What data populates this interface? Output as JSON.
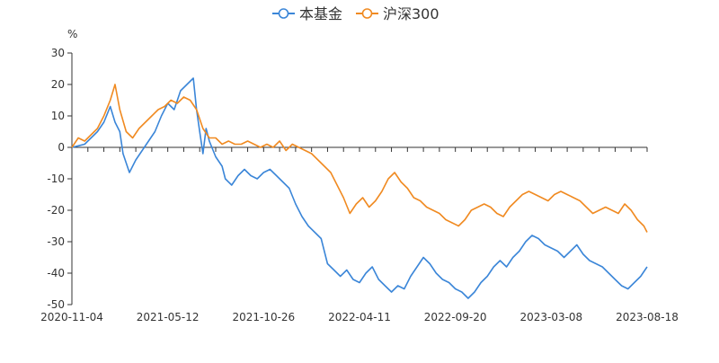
{
  "chart_data": {
    "type": "line",
    "title": "",
    "xlabel": "",
    "ylabel": "%",
    "ylim": [
      -50,
      30
    ],
    "yticks": [
      30,
      20,
      10,
      0,
      -10,
      -20,
      -30,
      -40,
      -50
    ],
    "xlim": [
      0,
      18
    ],
    "xticks": [
      {
        "label": "2020-11-04",
        "x": 0
      },
      {
        "label": "2021-05-12",
        "x": 3
      },
      {
        "label": "2021-10-26",
        "x": 6
      },
      {
        "label": "2022-04-11",
        "x": 9
      },
      {
        "label": "2022-09-20",
        "x": 12
      },
      {
        "label": "2023-03-08",
        "x": 15
      },
      {
        "label": "2023-08-18",
        "x": 18
      }
    ],
    "legend": {
      "position": "top-center"
    },
    "series": [
      {
        "name": "本基金",
        "color": "#3b86d8",
        "points": [
          [
            0,
            0
          ],
          [
            0.2,
            0.5
          ],
          [
            0.4,
            1
          ],
          [
            0.6,
            3
          ],
          [
            0.8,
            5
          ],
          [
            1.0,
            8
          ],
          [
            1.2,
            13
          ],
          [
            1.35,
            8
          ],
          [
            1.5,
            5
          ],
          [
            1.6,
            -2
          ],
          [
            1.8,
            -8
          ],
          [
            2.0,
            -4
          ],
          [
            2.2,
            -1
          ],
          [
            2.4,
            2
          ],
          [
            2.6,
            5
          ],
          [
            2.8,
            10
          ],
          [
            3.0,
            14
          ],
          [
            3.2,
            12
          ],
          [
            3.4,
            18
          ],
          [
            3.6,
            20
          ],
          [
            3.8,
            22
          ],
          [
            3.9,
            12
          ],
          [
            4.0,
            5
          ],
          [
            4.1,
            -2
          ],
          [
            4.2,
            6
          ],
          [
            4.3,
            2
          ],
          [
            4.5,
            -3
          ],
          [
            4.7,
            -6
          ],
          [
            4.8,
            -10
          ],
          [
            5.0,
            -12
          ],
          [
            5.2,
            -9
          ],
          [
            5.4,
            -7
          ],
          [
            5.6,
            -9
          ],
          [
            5.8,
            -10
          ],
          [
            6.0,
            -8
          ],
          [
            6.2,
            -7
          ],
          [
            6.4,
            -9
          ],
          [
            6.6,
            -11
          ],
          [
            6.8,
            -13
          ],
          [
            7.0,
            -18
          ],
          [
            7.2,
            -22
          ],
          [
            7.4,
            -25
          ],
          [
            7.6,
            -27
          ],
          [
            7.8,
            -29
          ],
          [
            8.0,
            -37
          ],
          [
            8.2,
            -39
          ],
          [
            8.4,
            -41
          ],
          [
            8.6,
            -39
          ],
          [
            8.8,
            -42
          ],
          [
            9.0,
            -43
          ],
          [
            9.2,
            -40
          ],
          [
            9.4,
            -38
          ],
          [
            9.6,
            -42
          ],
          [
            9.8,
            -44
          ],
          [
            10.0,
            -46
          ],
          [
            10.2,
            -44
          ],
          [
            10.4,
            -45
          ],
          [
            10.6,
            -41
          ],
          [
            10.8,
            -38
          ],
          [
            11.0,
            -35
          ],
          [
            11.2,
            -37
          ],
          [
            11.4,
            -40
          ],
          [
            11.6,
            -42
          ],
          [
            11.8,
            -43
          ],
          [
            12.0,
            -45
          ],
          [
            12.2,
            -46
          ],
          [
            12.4,
            -48
          ],
          [
            12.6,
            -46
          ],
          [
            12.8,
            -43
          ],
          [
            13.0,
            -41
          ],
          [
            13.2,
            -38
          ],
          [
            13.4,
            -36
          ],
          [
            13.6,
            -38
          ],
          [
            13.8,
            -35
          ],
          [
            14.0,
            -33
          ],
          [
            14.2,
            -30
          ],
          [
            14.4,
            -28
          ],
          [
            14.6,
            -29
          ],
          [
            14.8,
            -31
          ],
          [
            15.0,
            -32
          ],
          [
            15.2,
            -33
          ],
          [
            15.4,
            -35
          ],
          [
            15.6,
            -33
          ],
          [
            15.8,
            -31
          ],
          [
            16.0,
            -34
          ],
          [
            16.2,
            -36
          ],
          [
            16.4,
            -37
          ],
          [
            16.6,
            -38
          ],
          [
            16.8,
            -40
          ],
          [
            17.0,
            -42
          ],
          [
            17.2,
            -44
          ],
          [
            17.4,
            -45
          ],
          [
            17.6,
            -43
          ],
          [
            17.8,
            -41
          ],
          [
            18.0,
            -38
          ]
        ]
      },
      {
        "name": "沪深300",
        "color": "#f08a21",
        "points": [
          [
            0,
            0
          ],
          [
            0.2,
            3
          ],
          [
            0.4,
            2
          ],
          [
            0.6,
            4
          ],
          [
            0.8,
            6
          ],
          [
            1.0,
            10
          ],
          [
            1.2,
            15
          ],
          [
            1.35,
            20
          ],
          [
            1.5,
            12
          ],
          [
            1.7,
            5
          ],
          [
            1.9,
            3
          ],
          [
            2.1,
            6
          ],
          [
            2.3,
            8
          ],
          [
            2.5,
            10
          ],
          [
            2.7,
            12
          ],
          [
            2.9,
            13
          ],
          [
            3.1,
            15
          ],
          [
            3.3,
            14
          ],
          [
            3.5,
            16
          ],
          [
            3.7,
            15
          ],
          [
            3.9,
            12
          ],
          [
            4.1,
            6
          ],
          [
            4.3,
            3
          ],
          [
            4.5,
            3
          ],
          [
            4.7,
            1
          ],
          [
            4.9,
            2
          ],
          [
            5.1,
            1
          ],
          [
            5.3,
            1
          ],
          [
            5.5,
            2
          ],
          [
            5.7,
            1
          ],
          [
            5.9,
            0
          ],
          [
            6.1,
            1
          ],
          [
            6.3,
            0
          ],
          [
            6.5,
            2
          ],
          [
            6.7,
            -1
          ],
          [
            6.9,
            1
          ],
          [
            7.1,
            0
          ],
          [
            7.3,
            -1
          ],
          [
            7.5,
            -2
          ],
          [
            7.7,
            -4
          ],
          [
            7.9,
            -6
          ],
          [
            8.1,
            -8
          ],
          [
            8.3,
            -12
          ],
          [
            8.5,
            -16
          ],
          [
            8.7,
            -21
          ],
          [
            8.9,
            -18
          ],
          [
            9.1,
            -16
          ],
          [
            9.3,
            -19
          ],
          [
            9.5,
            -17
          ],
          [
            9.7,
            -14
          ],
          [
            9.9,
            -10
          ],
          [
            10.1,
            -8
          ],
          [
            10.3,
            -11
          ],
          [
            10.5,
            -13
          ],
          [
            10.7,
            -16
          ],
          [
            10.9,
            -17
          ],
          [
            11.1,
            -19
          ],
          [
            11.3,
            -20
          ],
          [
            11.5,
            -21
          ],
          [
            11.7,
            -23
          ],
          [
            11.9,
            -24
          ],
          [
            12.1,
            -25
          ],
          [
            12.3,
            -23
          ],
          [
            12.5,
            -20
          ],
          [
            12.7,
            -19
          ],
          [
            12.9,
            -18
          ],
          [
            13.1,
            -19
          ],
          [
            13.3,
            -21
          ],
          [
            13.5,
            -22
          ],
          [
            13.7,
            -19
          ],
          [
            13.9,
            -17
          ],
          [
            14.1,
            -15
          ],
          [
            14.3,
            -14
          ],
          [
            14.5,
            -15
          ],
          [
            14.7,
            -16
          ],
          [
            14.9,
            -17
          ],
          [
            15.1,
            -15
          ],
          [
            15.3,
            -14
          ],
          [
            15.5,
            -15
          ],
          [
            15.7,
            -16
          ],
          [
            15.9,
            -17
          ],
          [
            16.1,
            -19
          ],
          [
            16.3,
            -21
          ],
          [
            16.5,
            -20
          ],
          [
            16.7,
            -19
          ],
          [
            16.9,
            -20
          ],
          [
            17.1,
            -21
          ],
          [
            17.3,
            -18
          ],
          [
            17.5,
            -20
          ],
          [
            17.7,
            -23
          ],
          [
            17.9,
            -25
          ],
          [
            18.0,
            -27
          ]
        ]
      }
    ]
  }
}
